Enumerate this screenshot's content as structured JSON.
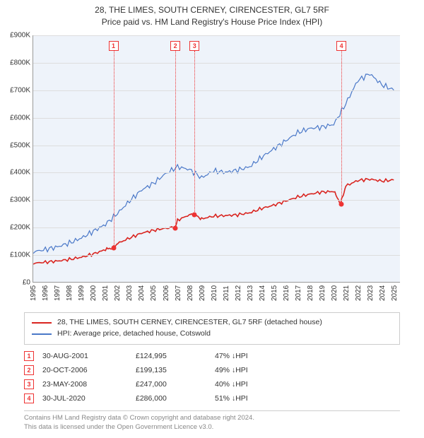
{
  "title_line1": "28, THE LIMES, SOUTH CERNEY, CIRENCESTER, GL7 5RF",
  "title_line2": "Price paid vs. HM Land Registry's House Price Index (HPI)",
  "chart": {
    "type": "line",
    "x_min_year": 1995,
    "x_max_year": 2025.5,
    "y_min": 0,
    "y_max": 900000,
    "y_tick_step": 100000,
    "y_tick_labels": [
      "£0",
      "£100K",
      "£200K",
      "£300K",
      "£400K",
      "£500K",
      "£600K",
      "£700K",
      "£800K",
      "£900K"
    ],
    "x_tick_years": [
      1995,
      1996,
      1997,
      1998,
      1999,
      2000,
      2001,
      2002,
      2003,
      2004,
      2005,
      2006,
      2007,
      2008,
      2009,
      2010,
      2011,
      2012,
      2013,
      2014,
      2015,
      2016,
      2017,
      2018,
      2019,
      2020,
      2021,
      2022,
      2023,
      2024,
      2025
    ],
    "series_property": {
      "color": "#d9241f",
      "width": 1.6,
      "points": [
        [
          1995,
          68000
        ],
        [
          1996,
          72000
        ],
        [
          1997,
          76000
        ],
        [
          1998,
          82000
        ],
        [
          1999,
          90000
        ],
        [
          2000,
          102000
        ],
        [
          2001,
          118000
        ],
        [
          2001.66,
          124995
        ],
        [
          2002,
          140000
        ],
        [
          2003,
          160000
        ],
        [
          2004,
          178000
        ],
        [
          2005,
          188000
        ],
        [
          2006,
          196000
        ],
        [
          2006.8,
          199135
        ],
        [
          2007,
          225000
        ],
        [
          2008,
          245000
        ],
        [
          2008.39,
          247000
        ],
        [
          2009,
          230000
        ],
        [
          2010,
          240000
        ],
        [
          2011,
          242000
        ],
        [
          2012,
          245000
        ],
        [
          2013,
          252000
        ],
        [
          2014,
          268000
        ],
        [
          2015,
          280000
        ],
        [
          2016,
          295000
        ],
        [
          2017,
          310000
        ],
        [
          2018,
          320000
        ],
        [
          2019,
          328000
        ],
        [
          2020,
          330000
        ],
        [
          2020.58,
          286000
        ],
        [
          2021,
          350000
        ],
        [
          2022,
          370000
        ],
        [
          2023,
          375000
        ],
        [
          2024,
          368000
        ],
        [
          2025,
          372000
        ]
      ]
    },
    "series_hpi": {
      "color": "#4a78c8",
      "width": 1.2,
      "points": [
        [
          1995,
          110000
        ],
        [
          1996,
          118000
        ],
        [
          1997,
          128000
        ],
        [
          1998,
          142000
        ],
        [
          1999,
          160000
        ],
        [
          2000,
          185000
        ],
        [
          2001,
          210000
        ],
        [
          2002,
          250000
        ],
        [
          2003,
          295000
        ],
        [
          2004,
          335000
        ],
        [
          2005,
          360000
        ],
        [
          2006,
          395000
        ],
        [
          2007,
          420000
        ],
        [
          2008,
          410000
        ],
        [
          2009,
          380000
        ],
        [
          2010,
          405000
        ],
        [
          2011,
          400000
        ],
        [
          2012,
          408000
        ],
        [
          2013,
          420000
        ],
        [
          2014,
          455000
        ],
        [
          2015,
          485000
        ],
        [
          2016,
          515000
        ],
        [
          2017,
          545000
        ],
        [
          2018,
          560000
        ],
        [
          2019,
          565000
        ],
        [
          2020,
          575000
        ],
        [
          2021,
          650000
        ],
        [
          2022,
          735000
        ],
        [
          2023,
          760000
        ],
        [
          2024,
          720000
        ],
        [
          2025,
          700000
        ]
      ]
    },
    "sale_markers": [
      {
        "idx": "1",
        "year": 2001.66,
        "price": 124995
      },
      {
        "idx": "2",
        "year": 2006.8,
        "price": 199135
      },
      {
        "idx": "3",
        "year": 2008.39,
        "price": 247000
      },
      {
        "idx": "4",
        "year": 2020.58,
        "price": 286000
      }
    ],
    "marker_color": "#e33",
    "plot_bg": "#eef3fa",
    "grid_color": "#dddddd"
  },
  "legend": {
    "items": [
      {
        "color": "#d9241f",
        "label": "28, THE LIMES, SOUTH CERNEY, CIRENCESTER, GL7 5RF (detached house)"
      },
      {
        "color": "#4a78c8",
        "label": "HPI: Average price, detached house, Cotswold"
      }
    ]
  },
  "sales": [
    {
      "idx": "1",
      "date": "30-AUG-2001",
      "price": "£124,995",
      "pct": "47%",
      "vs": "HPI"
    },
    {
      "idx": "2",
      "date": "20-OCT-2006",
      "price": "£199,135",
      "pct": "49%",
      "vs": "HPI"
    },
    {
      "idx": "3",
      "date": "23-MAY-2008",
      "price": "£247,000",
      "pct": "40%",
      "vs": "HPI"
    },
    {
      "idx": "4",
      "date": "30-JUL-2020",
      "price": "£286,000",
      "pct": "51%",
      "vs": "HPI"
    }
  ],
  "footer": {
    "line1": "Contains HM Land Registry data © Crown copyright and database right 2024.",
    "line2": "This data is licensed under the Open Government Licence v3.0."
  }
}
